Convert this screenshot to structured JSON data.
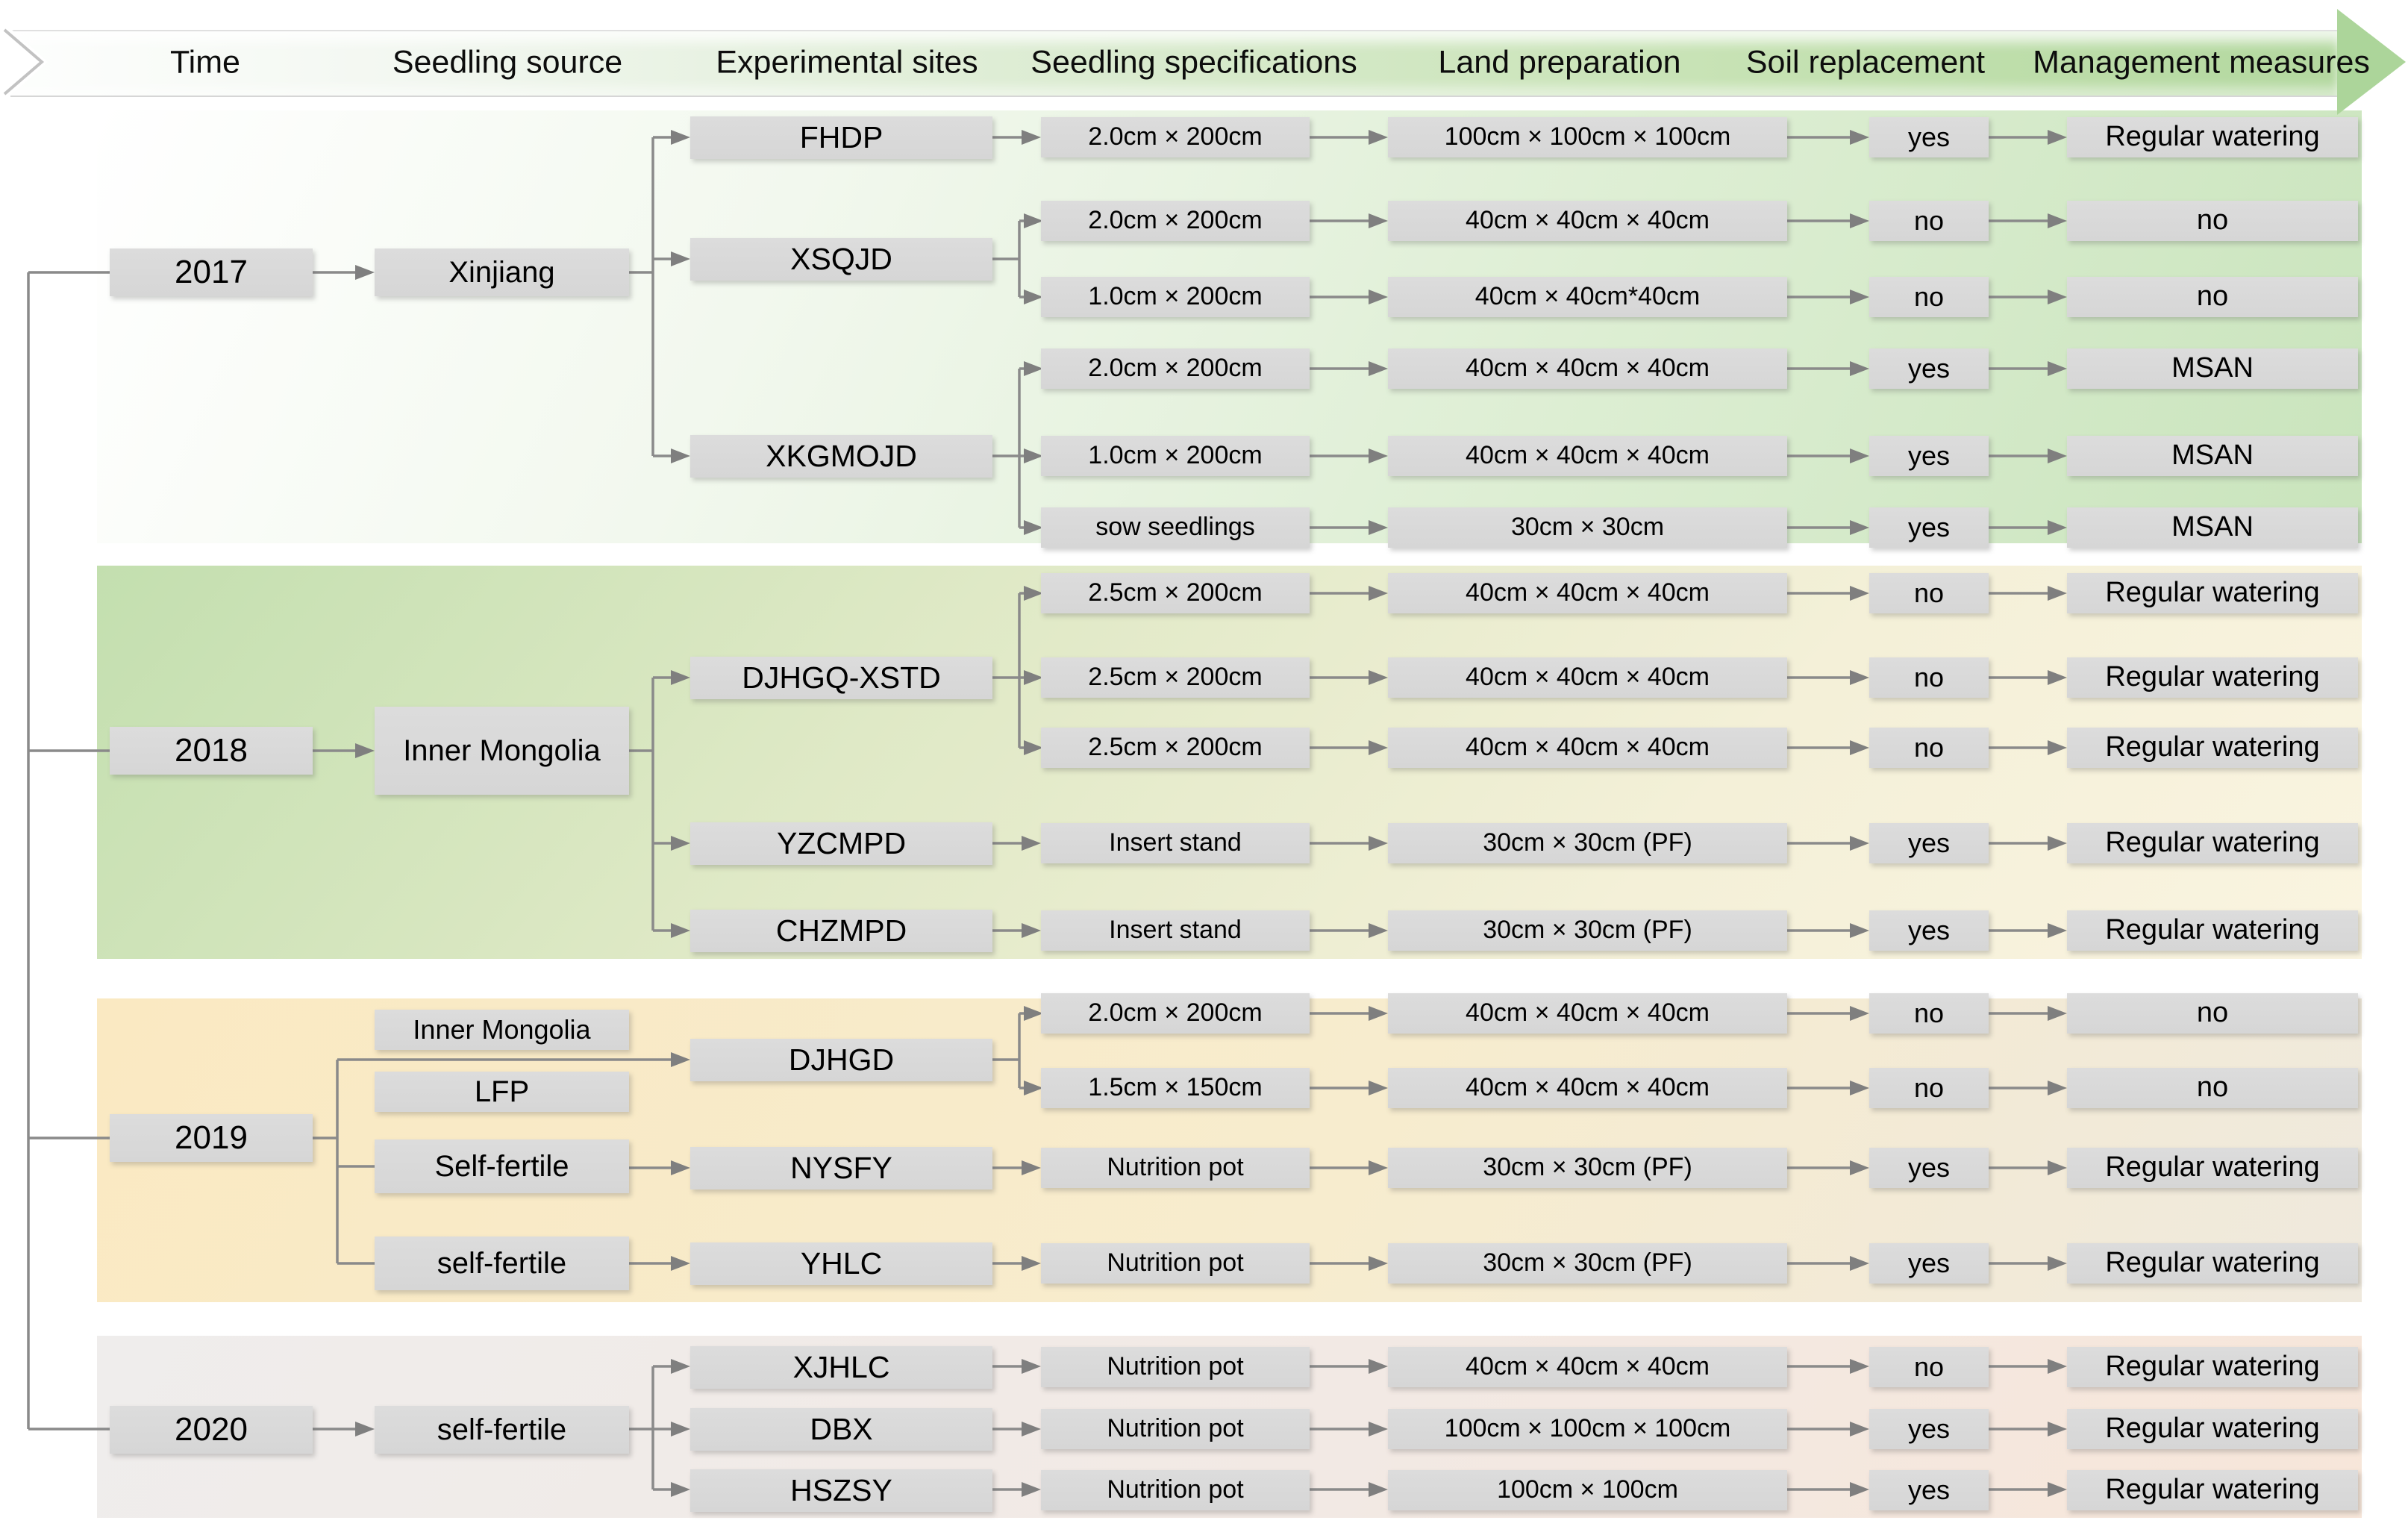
{
  "header": {
    "columns": [
      "Time",
      "Seedling source",
      "Experimental sites",
      "Seedling specifications",
      "Land preparation",
      "Soil replacement",
      "Management measures"
    ]
  },
  "colors": {
    "banner_green": "#aed69b",
    "box_gray": "#d9d9d9",
    "connector_gray": "#8a8a8a",
    "band_2017_green": "#c9e4bc",
    "band_2018_green": "#c3dfaf",
    "band_2019_orange": "#fae9c2",
    "band_2020_pink": "#f7e6d9"
  },
  "sections": {
    "y2017": {
      "year": "2017",
      "source": "Xinjiang",
      "sites": {
        "fhdp": "FHDP",
        "xsqjd": "XSQJD",
        "xkgmojd": "XKGMOJD"
      },
      "rows": [
        {
          "spec": "2.0cm × 200cm",
          "land": "100cm × 100cm × 100cm",
          "soil": "yes",
          "mgmt": "Regular watering"
        },
        {
          "spec": "2.0cm × 200cm",
          "land": "40cm × 40cm × 40cm",
          "soil": "no",
          "mgmt": "no"
        },
        {
          "spec": "1.0cm × 200cm",
          "land": "40cm × 40cm*40cm",
          "soil": "no",
          "mgmt": "no"
        },
        {
          "spec": "2.0cm × 200cm",
          "land": "40cm × 40cm × 40cm",
          "soil": "yes",
          "mgmt": "MSAN"
        },
        {
          "spec": "1.0cm × 200cm",
          "land": "40cm × 40cm × 40cm",
          "soil": "yes",
          "mgmt": "MSAN"
        },
        {
          "spec": "sow seedlings",
          "land": "30cm × 30cm",
          "soil": "yes",
          "mgmt": "MSAN"
        }
      ]
    },
    "y2018": {
      "year": "2018",
      "source": "Inner Mongolia",
      "sites": {
        "djhgq": "DJHGQ-XSTD",
        "yzcmpd": "YZCMPD",
        "chzmpd": "CHZMPD"
      },
      "rows": [
        {
          "spec": "2.5cm × 200cm",
          "land": "40cm × 40cm × 40cm",
          "soil": "no",
          "mgmt": "Regular watering"
        },
        {
          "spec": "2.5cm × 200cm",
          "land": "40cm × 40cm × 40cm",
          "soil": "no",
          "mgmt": "Regular watering"
        },
        {
          "spec": "2.5cm × 200cm",
          "land": "40cm × 40cm × 40cm",
          "soil": "no",
          "mgmt": "Regular watering"
        },
        {
          "spec": "Insert stand",
          "land": "30cm × 30cm (PF)",
          "soil": "yes",
          "mgmt": "Regular watering"
        },
        {
          "spec": "Insert stand",
          "land": "30cm × 30cm (PF)",
          "soil": "yes",
          "mgmt": "Regular watering"
        }
      ]
    },
    "y2019": {
      "year": "2019",
      "sources": {
        "im": "Inner Mongolia",
        "lfp": "LFP",
        "sf_upper": "Self-fertile",
        "sf_lower": "self-fertile"
      },
      "sites": {
        "djhgd": "DJHGD",
        "nysfy": "NYSFY",
        "yhlc": "YHLC"
      },
      "rows": [
        {
          "spec": "2.0cm × 200cm",
          "land": "40cm × 40cm × 40cm",
          "soil": "no",
          "mgmt": "no"
        },
        {
          "spec": "1.5cm × 150cm",
          "land": "40cm × 40cm × 40cm",
          "soil": "no",
          "mgmt": "no"
        },
        {
          "spec": "Nutrition pot",
          "land": "30cm × 30cm (PF)",
          "soil": "yes",
          "mgmt": "Regular watering"
        },
        {
          "spec": "Nutrition pot",
          "land": "30cm × 30cm (PF)",
          "soil": "yes",
          "mgmt": "Regular watering"
        }
      ]
    },
    "y2020": {
      "year": "2020",
      "source": "self-fertile",
      "sites": {
        "xjhlc": "XJHLC",
        "dbx": "DBX",
        "hszsy": "HSZSY"
      },
      "rows": [
        {
          "spec": "Nutrition pot",
          "land": "40cm × 40cm × 40cm",
          "soil": "no",
          "mgmt": "Regular watering"
        },
        {
          "spec": "Nutrition pot",
          "land": "100cm × 100cm × 100cm",
          "soil": "yes",
          "mgmt": "Regular watering"
        },
        {
          "spec": "Nutrition pot",
          "land": "100cm × 100cm",
          "soil": "yes",
          "mgmt": "Regular watering"
        }
      ]
    }
  }
}
